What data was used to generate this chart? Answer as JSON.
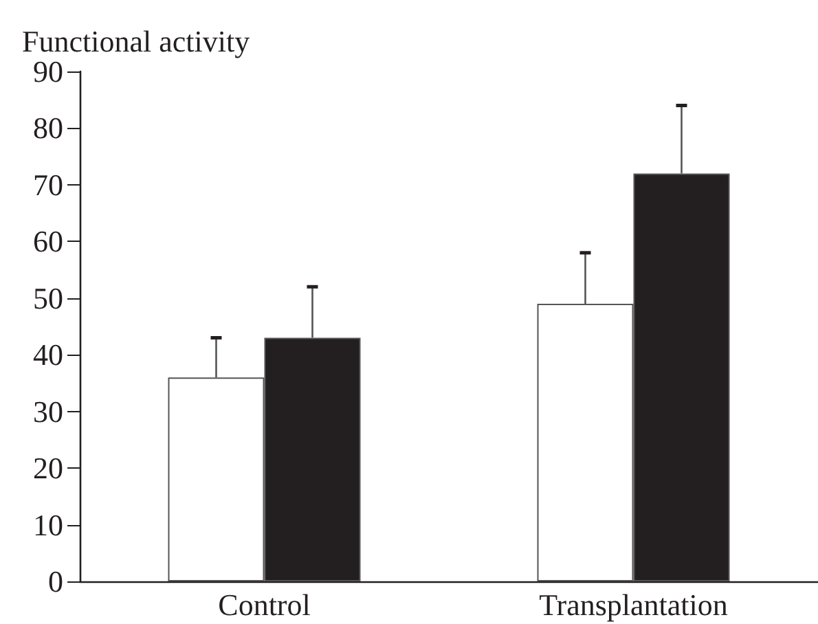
{
  "chart_data": {
    "type": "bar",
    "ylabel": "Functional activity",
    "categories": [
      "Control",
      "Transplantation"
    ],
    "series": [
      {
        "color": "#ffffff",
        "values": [
          36,
          49
        ],
        "errors": [
          [
            36,
            43
          ],
          [
            49,
            58
          ]
        ]
      },
      {
        "color": "#231f20",
        "values": [
          43,
          72
        ],
        "errors": [
          [
            43,
            52
          ],
          [
            72,
            84
          ]
        ]
      }
    ],
    "ylim": [
      0,
      90
    ],
    "yticks": [
      0,
      10,
      20,
      30,
      40,
      50,
      60,
      70,
      80,
      90
    ],
    "grid": false
  }
}
